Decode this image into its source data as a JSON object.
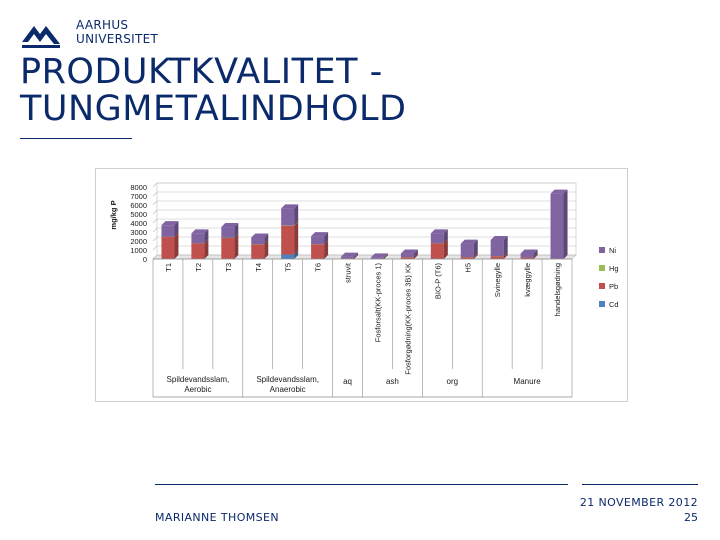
{
  "logo": {
    "line1": "AARHUS",
    "line2": "UNIVERSITET"
  },
  "title": {
    "line1": "PRODUKTKVALITET -",
    "line2": "TUNGMETALINDHOLD"
  },
  "footer": {
    "author": "MARIANNE THOMSEN",
    "date": "21 NOVEMBER 2012",
    "page": "25"
  },
  "colors": {
    "brand": "#0b2a6b",
    "Ni": "#8064a2",
    "Hg": "#9bbb59",
    "Pb": "#c0504d",
    "Cd": "#4f81bd"
  },
  "chart_data": {
    "type": "bar",
    "stacked": true,
    "ylabel": "mg/kg P",
    "ylim": [
      0,
      8000
    ],
    "yticks": [
      "0",
      "1000",
      "2000",
      "3000",
      "4000",
      "5000",
      "6000",
      "7000",
      "8000"
    ],
    "grid": true,
    "legend_position": "right",
    "categories": [
      "T1",
      "T2",
      "T3",
      "T4",
      "T5",
      "T6",
      "struvit",
      "Fosforsalt(KK-proces 1)",
      "Fosforgødning(KK-proces 3B) KK",
      "BIO-P (T6)",
      "H5",
      "Svinegylle",
      "kvæggylle",
      "handelsgødning"
    ],
    "groups": [
      {
        "label": "Spildevandsslam, Aerobic",
        "count": 3
      },
      {
        "label": "Spildevandsslam, Anaerobic",
        "count": 3
      },
      {
        "label": "aq",
        "count": 1
      },
      {
        "label": "ash",
        "count": 2
      },
      {
        "label": "org",
        "count": 2
      },
      {
        "label": "Manure",
        "count": 3
      }
    ],
    "series": [
      {
        "name": "Cd",
        "color": "#4f81bd",
        "values": [
          40,
          30,
          30,
          30,
          500,
          30,
          5,
          5,
          5,
          30,
          10,
          10,
          10,
          10
        ]
      },
      {
        "name": "Pb",
        "color": "#c0504d",
        "values": [
          2400,
          1700,
          2300,
          1600,
          3200,
          1600,
          60,
          30,
          200,
          1700,
          200,
          300,
          150,
          50
        ]
      },
      {
        "name": "Hg",
        "color": "#9bbb59",
        "values": [
          20,
          15,
          20,
          15,
          30,
          15,
          2,
          2,
          2,
          20,
          5,
          2,
          2,
          2
        ]
      },
      {
        "name": "Ni",
        "color": "#8064a2",
        "values": [
          1300,
          1100,
          1200,
          750,
          1900,
          900,
          200,
          150,
          400,
          1100,
          1500,
          1800,
          450,
          7200
        ]
      }
    ]
  }
}
